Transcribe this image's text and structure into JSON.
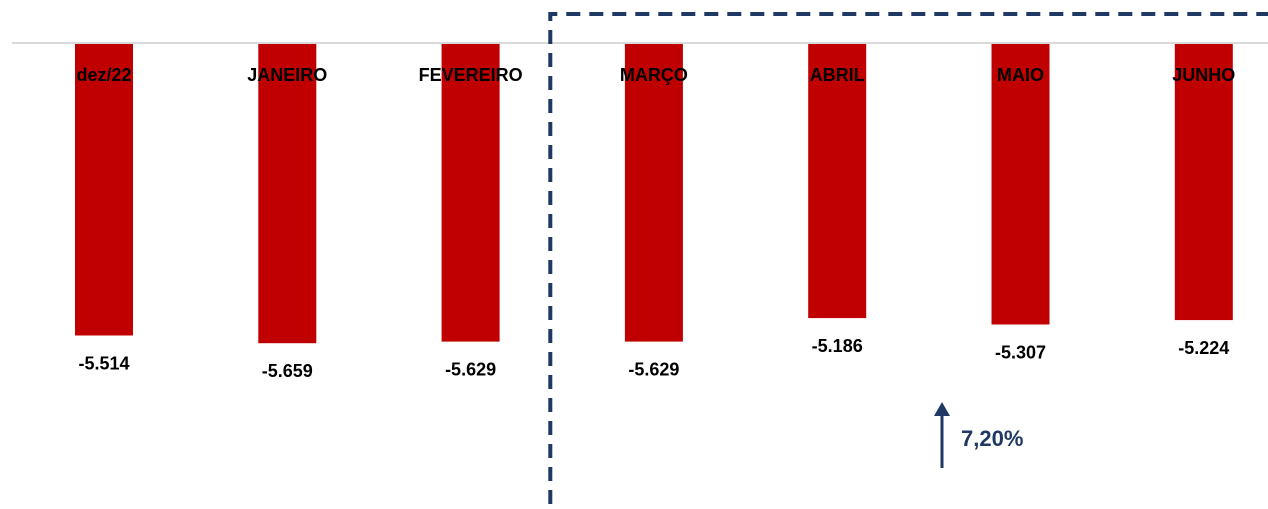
{
  "chart_data": {
    "type": "bar",
    "categories": [
      "dez/22",
      "JANEIRO",
      "FEVEREIRO",
      "MARÇO",
      "ABRIL",
      "MAIO",
      "JUNHO"
    ],
    "values": [
      -5514,
      -5659,
      -5629,
      -5629,
      -5186,
      -5307,
      -5224
    ],
    "value_labels": [
      "-5.514",
      "-5.659",
      "-5.629",
      "-5.629",
      "-5.186",
      "-5.307",
      "-5.224"
    ],
    "title": "",
    "xlabel": "",
    "ylabel": "",
    "ylim": [
      -5700,
      0
    ],
    "grid": false,
    "legend": "none",
    "bar_color": "#C00000",
    "highlight_region": {
      "from_category": "MARÇO",
      "to_category": "JUNHO",
      "style": "dashed",
      "color": "#1F3864"
    },
    "annotation": {
      "text": "7,20%",
      "icon": "up-arrow-icon",
      "color": "#1F3864"
    }
  }
}
